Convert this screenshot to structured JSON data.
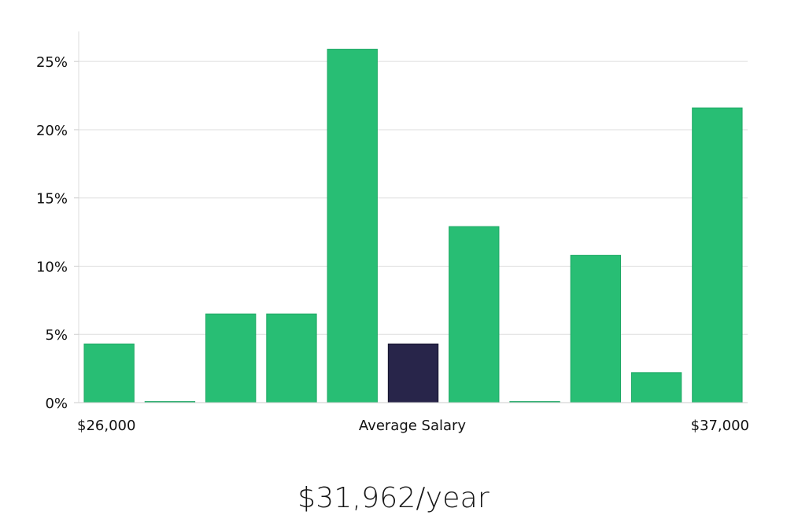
{
  "chart_data": {
    "type": "bar",
    "title": "",
    "xlabel": "Average Salary",
    "ylabel": "",
    "x_start_label": "$26,000",
    "x_end_label": "$37,000",
    "ylim": [
      0,
      27.2
    ],
    "y_ticks": [
      0,
      5,
      10,
      15,
      20,
      25
    ],
    "y_tick_labels": [
      "0%",
      "5%",
      "10%",
      "15%",
      "20%",
      "25%"
    ],
    "values": [
      4.3,
      0.08,
      6.5,
      6.5,
      25.9,
      4.3,
      12.9,
      0.08,
      10.8,
      2.2,
      21.6
    ],
    "highlight_index": 5,
    "colors": {
      "bar": "#28be74",
      "bar_edge": "#1fa865",
      "highlight": "#28254a",
      "highlight_edge": "#14132c",
      "grid": "#dddddd",
      "axis": "#cccccc"
    },
    "grid": true
  },
  "summary": {
    "salary": "$31,962/year"
  }
}
